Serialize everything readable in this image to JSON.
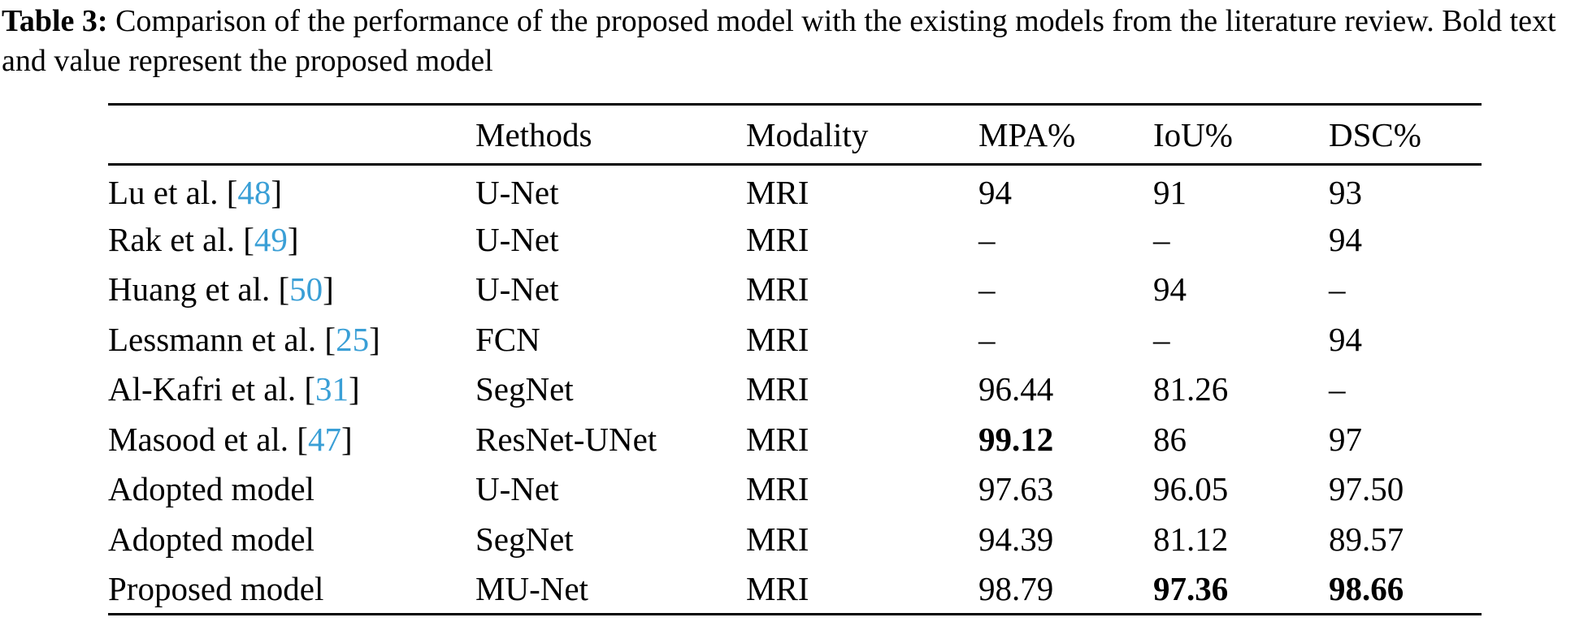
{
  "caption": {
    "label": "Table 3:",
    "text": " Comparison of the performance of the proposed model with the existing models from the literature review. Bold text and value represent the proposed model"
  },
  "table": {
    "headers": [
      "",
      "Methods",
      "Modality",
      "MPA%",
      "IoU%",
      "DSC%"
    ],
    "rows": [
      {
        "author": "Lu et al. [",
        "ref": "48",
        "close": "]",
        "method": "U-Net",
        "modality": "MRI",
        "mpa": "94",
        "iou": "91",
        "dsc": "93",
        "bold": []
      },
      {
        "author": "Rak et al. [",
        "ref": "49",
        "close": "]",
        "method": "U-Net",
        "modality": "MRI",
        "mpa": "–",
        "iou": "–",
        "dsc": "94",
        "bold": []
      },
      {
        "author": "Huang et al. [",
        "ref": "50",
        "close": "]",
        "method": "U-Net",
        "modality": "MRI",
        "mpa": "–",
        "iou": "94",
        "dsc": "–",
        "bold": []
      },
      {
        "author": "Lessmann et al. [",
        "ref": "25",
        "close": "]",
        "method": "FCN",
        "modality": "MRI",
        "mpa": "–",
        "iou": "–",
        "dsc": "94",
        "bold": []
      },
      {
        "author": "Al-Kafri et al. [",
        "ref": "31",
        "close": "]",
        "method": "SegNet",
        "modality": "MRI",
        "mpa": "96.44",
        "iou": "81.26",
        "dsc": "–",
        "bold": []
      },
      {
        "author": "Masood et al. [",
        "ref": "47",
        "close": "]",
        "method": "ResNet-UNet",
        "modality": "MRI",
        "mpa": "99.12",
        "iou": "86",
        "dsc": "97",
        "bold": [
          "mpa"
        ]
      },
      {
        "author": "Adopted model",
        "ref": "",
        "close": "",
        "method": "U-Net",
        "modality": "MRI",
        "mpa": "97.63",
        "iou": "96.05",
        "dsc": "97.50",
        "bold": []
      },
      {
        "author": "Adopted model",
        "ref": "",
        "close": "",
        "method": "SegNet",
        "modality": "MRI",
        "mpa": "94.39",
        "iou": "81.12",
        "dsc": "89.57",
        "bold": []
      },
      {
        "author": "Proposed model",
        "ref": "",
        "close": "",
        "method": "MU-Net",
        "modality": "MRI",
        "mpa": "98.79",
        "iou": "97.36",
        "dsc": "98.66",
        "bold": [
          "iou",
          "dsc"
        ]
      }
    ]
  },
  "colors": {
    "reference_link": "#3a9fd6",
    "text": "#000000",
    "background": "#ffffff"
  }
}
